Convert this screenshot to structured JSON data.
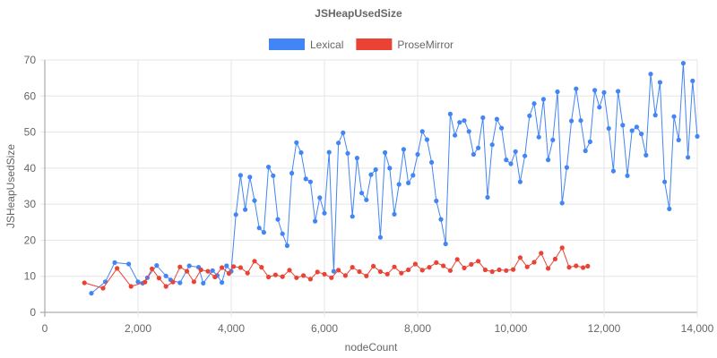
{
  "chart_data": {
    "type": "line",
    "title": "JSHeapUsedSize",
    "xlabel": "nodeCount",
    "ylabel": "JSHeapUsedSize",
    "xlim": [
      0,
      14000
    ],
    "ylim": [
      0,
      70
    ],
    "x_ticks": [
      "0",
      "2,000",
      "4,000",
      "6,000",
      "8,000",
      "10,000",
      "12,000",
      "14,000"
    ],
    "y_ticks": [
      "0",
      "10",
      "20",
      "30",
      "40",
      "50",
      "60",
      "70"
    ],
    "grid": true,
    "legend_position": "top-center",
    "series": [
      {
        "name": "Lexical",
        "color": "#4285f4",
        "x": [
          1000,
          1300,
          1500,
          1800,
          2000,
          2100,
          2200,
          2400,
          2600,
          2700,
          2900,
          3100,
          3300,
          3400,
          3600,
          3700,
          3800,
          3900,
          4000,
          4100,
          4200,
          4300,
          4400,
          4500,
          4600,
          4700,
          4800,
          4900,
          5000,
          5100,
          5200,
          5300,
          5400,
          5500,
          5600,
          5700,
          5800,
          5900,
          6000,
          6100,
          6200,
          6300,
          6400,
          6500,
          6600,
          6700,
          6800,
          6900,
          7000,
          7100,
          7200,
          7300,
          7400,
          7500,
          7600,
          7700,
          7800,
          7900,
          8000,
          8100,
          8200,
          8300,
          8400,
          8500,
          8600,
          8700,
          8800,
          8900,
          9000,
          9100,
          9200,
          9300,
          9400,
          9500,
          9600,
          9700,
          9800,
          9900,
          10000,
          10100,
          10200,
          10300,
          10400,
          10500,
          10600,
          10700,
          10800,
          10900,
          11000,
          11100,
          11200,
          11300,
          11400,
          11500,
          11600,
          11700,
          11800,
          11900,
          12000,
          12100,
          12200,
          12300,
          12400,
          12500,
          12600,
          12700,
          12800,
          12900,
          13000,
          13100,
          13200,
          13300,
          13400,
          13500,
          13600,
          13700,
          13800,
          13900,
          14000
        ],
        "y": [
          5.3,
          8.5,
          13.8,
          13.4,
          8.5,
          8.1,
          9.6,
          13,
          10.1,
          9,
          8.2,
          12.9,
          12.5,
          8.1,
          11.6,
          10.2,
          8.3,
          12.9,
          11.4,
          27.1,
          38,
          28.5,
          37.5,
          31,
          23.4,
          22.2,
          40.3,
          37.9,
          25.8,
          21.8,
          18.5,
          38.6,
          47.1,
          44.3,
          37,
          36.2,
          25.3,
          31.8,
          27.5,
          44.4,
          11.4,
          47,
          49.8,
          44.1,
          26.6,
          42.8,
          33.1,
          31.2,
          38.2,
          39.6,
          20.8,
          44.3,
          40,
          27.2,
          35.5,
          45.2,
          35.9,
          38,
          43.8,
          50.2,
          47.9,
          41.6,
          30.9,
          25.8,
          19,
          55,
          49.1,
          52.7,
          53.2,
          50.2,
          43.8,
          45.6,
          54,
          31.9,
          46.5,
          53.6,
          51.1,
          42.3,
          41.2,
          44.6,
          36.2,
          43.4,
          54.5,
          57.9,
          48.6,
          59.1,
          42.3,
          47.8,
          61.2,
          30.3,
          40.2,
          53.1,
          62,
          53.2,
          44.8,
          47.3,
          61.6,
          56.9,
          61,
          51,
          39.2,
          61.3,
          51.9,
          37.9,
          50.4,
          51.4,
          49.5,
          43.6,
          66.1,
          54.7,
          63.8,
          36.2,
          28.7,
          54.3,
          47.8,
          69.1,
          43,
          64.2,
          48.8
        ]
      },
      {
        "name": "ProseMirror",
        "color": "#ea4335",
        "x": [
          850,
          1250,
          1550,
          1850,
          2150,
          2300,
          2450,
          2600,
          2750,
          2900,
          3050,
          3200,
          3350,
          3500,
          3650,
          3800,
          3950,
          4050,
          4200,
          4350,
          4500,
          4650,
          4800,
          4950,
          5100,
          5250,
          5400,
          5550,
          5700,
          5850,
          6000,
          6150,
          6300,
          6450,
          6600,
          6750,
          6900,
          7050,
          7200,
          7350,
          7500,
          7650,
          7800,
          7950,
          8100,
          8250,
          8400,
          8550,
          8700,
          8850,
          9000,
          9150,
          9300,
          9450,
          9600,
          9750,
          9900,
          10050,
          10200,
          10350,
          10500,
          10650,
          10800,
          10950,
          11100,
          11250,
          11400,
          11550,
          11650
        ],
        "y": [
          8.2,
          6.7,
          12.2,
          7.2,
          8.4,
          12.1,
          9.5,
          7.2,
          8.4,
          12.6,
          11.4,
          8.5,
          11.8,
          11.4,
          9.8,
          12.4,
          10.8,
          12.7,
          12.4,
          10.9,
          14.2,
          12.5,
          9.8,
          10.4,
          9.9,
          11.7,
          9.6,
          10.2,
          9.2,
          11.2,
          10.6,
          9.6,
          11.7,
          10.2,
          12.5,
          11.3,
          10.1,
          12.8,
          11.3,
          10.6,
          12.6,
          10.9,
          11.8,
          13.4,
          11.7,
          12.5,
          13.8,
          12.9,
          11.6,
          14.7,
          12.3,
          13.3,
          14.2,
          11.8,
          11.3,
          11.8,
          11.6,
          11.9,
          15.2,
          12.6,
          13.9,
          16.4,
          12.2,
          14.8,
          17.9,
          12.5,
          12.9,
          12.4,
          12.8
        ]
      }
    ]
  }
}
